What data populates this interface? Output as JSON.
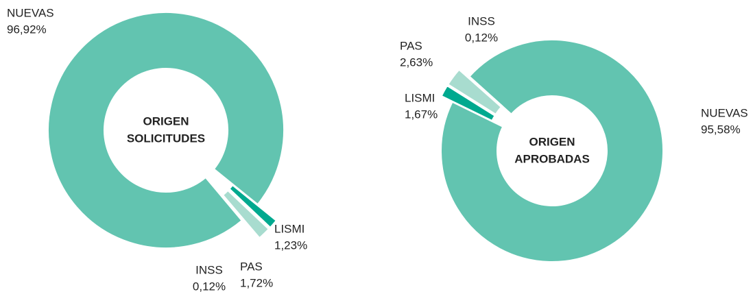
{
  "chart_data": [
    {
      "type": "pie",
      "donut": true,
      "title": [
        "ORIGEN",
        "SOLICITUDES"
      ],
      "categories": [
        "NUEVAS",
        "LISMI",
        "PAS",
        "INSS"
      ],
      "values": [
        96.92,
        1.23,
        1.72,
        0.12
      ],
      "value_labels": [
        "96,92%",
        "1,23%",
        "1,72%",
        "0,12%"
      ],
      "colors": [
        "#62c4b0",
        "#00a98f",
        "#a8dccf",
        "#a8dccf"
      ]
    },
    {
      "type": "pie",
      "donut": true,
      "title": [
        "ORIGEN",
        "APROBADAS"
      ],
      "categories": [
        "NUEVAS",
        "LISMI",
        "PAS",
        "INSS"
      ],
      "values": [
        95.58,
        1.67,
        2.63,
        0.12
      ],
      "value_labels": [
        "95,58%",
        "1,67%",
        "2,63%",
        "0,12%"
      ],
      "colors": [
        "#62c4b0",
        "#00a98f",
        "#a8dccf",
        "#a8dccf"
      ]
    }
  ]
}
